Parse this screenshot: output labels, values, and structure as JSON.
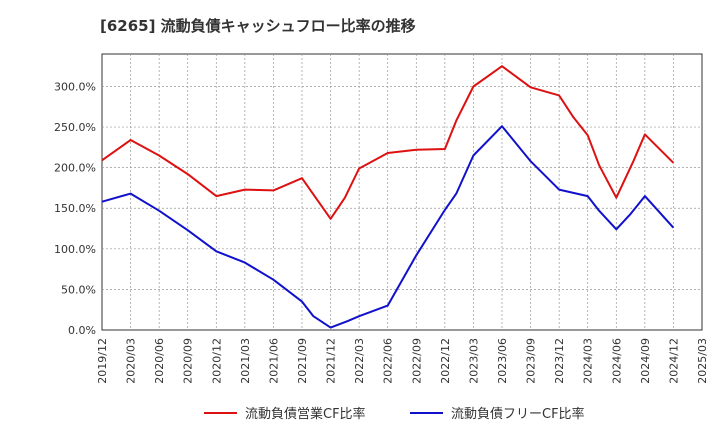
{
  "chart_data": {
    "type": "line",
    "title": "[6265]  流動負債キャッシュフロー比率の推移",
    "xlabel": "",
    "ylabel": "",
    "ylim": [
      0,
      340
    ],
    "y_ticks": [
      0,
      50,
      100,
      150,
      200,
      250,
      300
    ],
    "y_tick_labels": [
      "0.0%",
      "50.0%",
      "100.0%",
      "150.0%",
      "200.0%",
      "250.0%",
      "300.0%"
    ],
    "x_tick_labels": [
      "2019/12",
      "2020/03",
      "2020/06",
      "2020/09",
      "2020/12",
      "2021/03",
      "2021/06",
      "2021/09",
      "2021/12",
      "2022/03",
      "2022/06",
      "2022/09",
      "2022/12",
      "2023/03",
      "2023/06",
      "2023/09",
      "2023/12",
      "2024/03",
      "2024/06",
      "2024/09",
      "2024/12",
      "2025/03"
    ],
    "grid": true,
    "legend_position": "bottom",
    "series": [
      {
        "name": "流動負債営業CF比率",
        "color": "#dd1111",
        "points": [
          [
            0,
            209
          ],
          [
            1,
            234
          ],
          [
            2,
            215
          ],
          [
            3,
            192
          ],
          [
            4,
            165
          ],
          [
            5,
            173
          ],
          [
            6,
            172
          ],
          [
            7,
            187
          ],
          [
            7.4,
            167
          ],
          [
            8,
            137
          ],
          [
            8.5,
            163
          ],
          [
            9,
            199
          ],
          [
            10,
            218
          ],
          [
            11,
            222
          ],
          [
            12,
            223
          ],
          [
            12.4,
            258
          ],
          [
            13,
            300
          ],
          [
            14,
            325
          ],
          [
            15,
            299
          ],
          [
            16,
            289
          ],
          [
            16.5,
            262
          ],
          [
            17,
            240
          ],
          [
            17.4,
            203
          ],
          [
            18,
            163
          ],
          [
            18.6,
            208
          ],
          [
            19,
            241
          ],
          [
            20,
            206
          ]
        ]
      },
      {
        "name": "流動負債フリーCF比率",
        "color": "#1111cc",
        "points": [
          [
            0,
            158
          ],
          [
            1,
            168
          ],
          [
            2,
            147
          ],
          [
            3,
            123
          ],
          [
            4,
            97
          ],
          [
            5,
            83
          ],
          [
            6,
            62
          ],
          [
            7,
            35
          ],
          [
            7.4,
            17
          ],
          [
            8,
            3
          ],
          [
            8.6,
            11
          ],
          [
            9,
            17
          ],
          [
            10,
            30
          ],
          [
            11,
            92
          ],
          [
            12,
            148
          ],
          [
            12.4,
            168
          ],
          [
            13,
            215
          ],
          [
            14,
            251
          ],
          [
            15,
            208
          ],
          [
            16,
            173
          ],
          [
            17,
            165
          ],
          [
            17.4,
            147
          ],
          [
            18,
            124
          ],
          [
            18.5,
            143
          ],
          [
            19,
            165
          ],
          [
            20,
            126
          ]
        ]
      }
    ]
  }
}
